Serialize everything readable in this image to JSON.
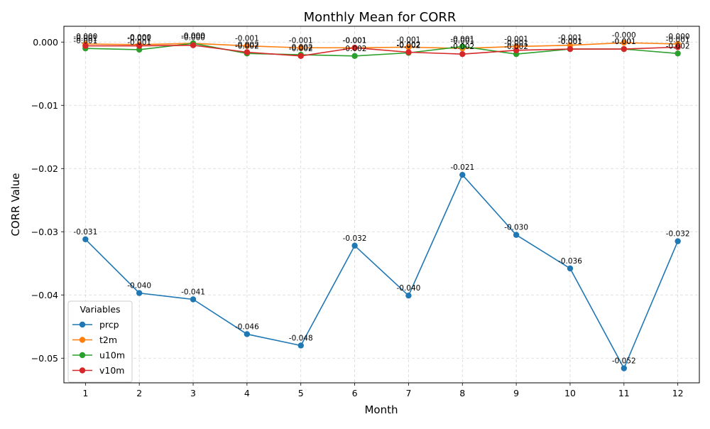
{
  "chart_data": {
    "type": "line",
    "title": "Monthly Mean for CORR",
    "xlabel": "Month",
    "ylabel": "CORR Value",
    "x": [
      1,
      2,
      3,
      4,
      5,
      6,
      7,
      8,
      9,
      10,
      11,
      12
    ],
    "xlim": [
      0.6,
      12.4
    ],
    "ylim": [
      -0.0539,
      0.0025
    ],
    "yticks": [
      0.0,
      -0.01,
      -0.02,
      -0.03,
      -0.04,
      -0.05
    ],
    "ytick_labels": [
      "0.000",
      "−0.01",
      "−0.02",
      "−0.03",
      "−0.04",
      "−0.05"
    ],
    "grid": true,
    "legend": {
      "title": "Variables",
      "placement": "lower-left"
    },
    "series": [
      {
        "name": "prcp",
        "color": "#1f77b4",
        "values": [
          -0.0312,
          -0.0397,
          -0.0407,
          -0.0462,
          -0.048,
          -0.0322,
          -0.0401,
          -0.021,
          -0.0305,
          -0.0358,
          -0.0516,
          -0.0315
        ],
        "labels": [
          "-0.031",
          "-0.040",
          "-0.041",
          "-0.046",
          "-0.048",
          "-0.032",
          "-0.040",
          "-0.021",
          "-0.030",
          "-0.036",
          "-0.052",
          "-0.032"
        ]
      },
      {
        "name": "t2m",
        "color": "#ff7f0e",
        "values": [
          -0.0003,
          -0.0004,
          -0.0002,
          -0.0006,
          -0.0009,
          -0.0009,
          -0.0008,
          -0.001,
          -0.0007,
          -0.0005,
          -0.0001,
          -0.0003
        ],
        "labels": [
          "-0.000",
          "-0.000",
          "-0.000",
          "-0.001",
          "-0.001",
          "-0.001",
          "-0.001",
          "-0.001",
          "-0.001",
          "-0.001",
          "-0.000",
          "-0.000"
        ]
      },
      {
        "name": "u10m",
        "color": "#2ca02c",
        "values": [
          -0.001,
          -0.0012,
          -0.0002,
          -0.0018,
          -0.002,
          -0.0022,
          -0.0017,
          -0.0007,
          -0.0019,
          -0.0011,
          -0.0011,
          -0.0018
        ],
        "labels": [
          "-0.001",
          "-0.001",
          "-0.000",
          "-0.002",
          "-0.002",
          "-0.002",
          "-0.002",
          "-0.001",
          "-0.002",
          "-0.001",
          "-0.001",
          "-0.002"
        ]
      },
      {
        "name": "v10m",
        "color": "#d62728",
        "values": [
          -0.0006,
          -0.0006,
          -0.0005,
          -0.0016,
          -0.0022,
          -0.0009,
          -0.0016,
          -0.0019,
          -0.0013,
          -0.0011,
          -0.0011,
          -0.0008
        ],
        "labels": [
          "-0.001",
          "-0.001",
          "-0.000",
          "-0.002",
          "-0.002",
          "-0.001",
          "-0.002",
          "-0.002",
          "-0.001",
          "-0.001",
          "-0.001",
          "-0.001"
        ]
      }
    ]
  }
}
